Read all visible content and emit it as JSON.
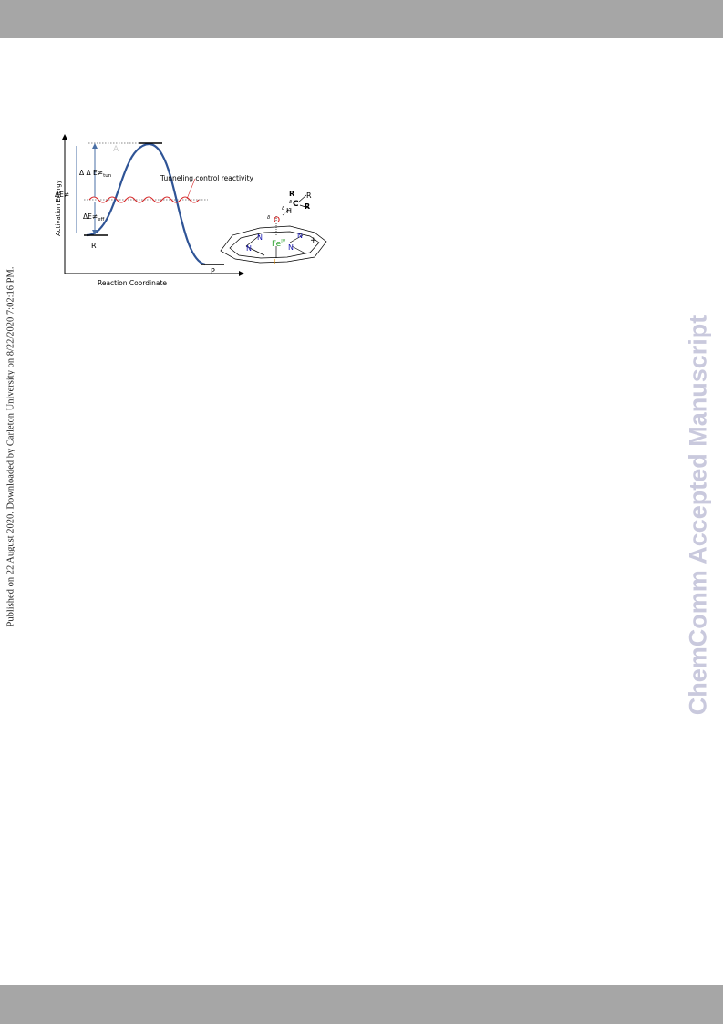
{
  "sidebar_text": "Published on 22 August 2020. Downloaded by Carleton University on 8/22/2020 7:02:16 PM.",
  "watermark": "ChemComm Accepted Manuscript",
  "figure": {
    "y_axis_label": "Activation Energy",
    "x_axis_label": "Reaction Coordinate",
    "peak_label": "A",
    "reactant_label": "R",
    "product_label": "P",
    "tunneling_label": "Tunneling control reactivity",
    "delta_delta_e": {
      "main": "Δ Δ E≠",
      "sub": "tun"
    },
    "delta_e": "ΔE≠",
    "delta_e_eff": {
      "main": "ΔE≠",
      "sub": "eff"
    },
    "molecule": {
      "oxygen": "O",
      "hydrogen": "H",
      "carbon": "C",
      "r_groups": [
        "R",
        "R",
        "R"
      ],
      "nitrogens": [
        "N",
        "N",
        "N",
        "N"
      ],
      "iron": "Fe",
      "iron_oxidation": "IV",
      "ligand": "L",
      "charge": "+",
      "partial_charges": [
        "δ",
        "δ",
        "δ"
      ]
    }
  }
}
